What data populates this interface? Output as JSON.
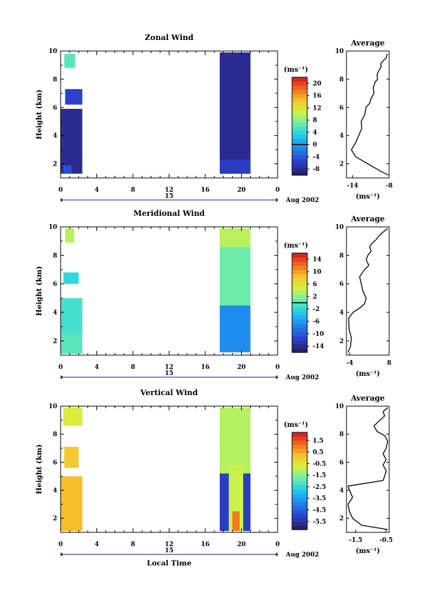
{
  "chart_data": [
    {
      "type": "heatmap",
      "title": "Zonal Wind",
      "ylabel": "Height (km)",
      "xlim": [
        0,
        24
      ],
      "ylim": [
        1,
        10
      ],
      "xticks": [
        "0",
        "4",
        "8",
        "12",
        "16",
        "20",
        "0"
      ],
      "yticks": [
        "2",
        "4",
        "6",
        "8",
        "10"
      ],
      "date_label": "15",
      "month_label": "Aug 2002",
      "colorbar": {
        "unit": "(ms⁻¹)",
        "ticks": [
          "20",
          "16",
          "12",
          "8",
          "4",
          "0",
          "-4",
          "-8"
        ],
        "vmin": -10,
        "vmax": 22,
        "marked_value": 0
      },
      "blocks": [
        {
          "x0": 0,
          "x1": 2.4,
          "y0": 1.3,
          "y1": 5.9,
          "value": -8.5
        },
        {
          "x0": 0.3,
          "x1": 1.2,
          "y0": 1.3,
          "y1": 1.9,
          "value": -5
        },
        {
          "x0": 0.5,
          "x1": 2.4,
          "y0": 6.2,
          "y1": 7.3,
          "value": -6
        },
        {
          "x0": 0.4,
          "x1": 1.6,
          "y0": 8.8,
          "y1": 9.8,
          "value": 6
        },
        {
          "x0": 17.6,
          "x1": 21,
          "y0": 1.3,
          "y1": 9.9,
          "value": -8.5
        },
        {
          "x0": 17.6,
          "x1": 21,
          "y0": 1.3,
          "y1": 2.3,
          "value": -6.5
        }
      ],
      "profile": {
        "title": "Average",
        "xlabel": "(ms⁻¹)",
        "xlim": [
          -15,
          -8
        ],
        "xticks": [
          "-14",
          "-8"
        ],
        "yticks": [
          "2",
          "4",
          "6",
          "8",
          "10"
        ],
        "x": [
          -8.1,
          -9.5,
          -11.5,
          -13.5,
          -14.2,
          -13.5,
          -13.0,
          -12.5,
          -12.6,
          -12.0,
          -11.8,
          -11.2,
          -11.0,
          -10.5,
          -10.6,
          -10.3,
          -9.9,
          -10.0,
          -9.7,
          -9.3,
          -9.4,
          -9.0,
          -8.5,
          -8.3
        ],
        "y": [
          1.2,
          1.5,
          2.0,
          2.5,
          3.0,
          3.5,
          4.0,
          4.5,
          5.0,
          5.5,
          6.0,
          6.3,
          6.6,
          7.0,
          7.4,
          7.8,
          8.0,
          8.3,
          8.6,
          8.9,
          9.1,
          9.3,
          9.5,
          9.8
        ]
      }
    },
    {
      "type": "heatmap",
      "title": "Meridional Wind",
      "ylabel": "Height (km)",
      "xlim": [
        0,
        24
      ],
      "ylim": [
        1,
        10
      ],
      "xticks": [
        "0",
        "4",
        "8",
        "12",
        "16",
        "20",
        "0"
      ],
      "yticks": [
        "2",
        "4",
        "6",
        "8",
        "10"
      ],
      "date_label": "15",
      "month_label": "Aug 2002",
      "colorbar": {
        "unit": "(ms⁻¹)",
        "ticks": [
          "14",
          "10",
          "6",
          "2",
          "-2",
          "-6",
          "-10",
          "-14"
        ],
        "vmin": -16,
        "vmax": 16,
        "marked_value": 0
      },
      "blocks": [
        {
          "x0": 0,
          "x1": 2.4,
          "y0": 1.1,
          "y1": 5.0,
          "value": -1
        },
        {
          "x0": 0,
          "x1": 2.4,
          "y0": 1.1,
          "y1": 2.5,
          "value": 0
        },
        {
          "x0": 0.3,
          "x1": 2.0,
          "y0": 6.0,
          "y1": 6.8,
          "value": -2
        },
        {
          "x0": 0.5,
          "x1": 1.5,
          "y0": 8.9,
          "y1": 9.9,
          "value": 4
        },
        {
          "x0": 17.6,
          "x1": 21,
          "y0": 1.2,
          "y1": 4.5,
          "value": -7
        },
        {
          "x0": 17.6,
          "x1": 21,
          "y0": 4.5,
          "y1": 8.6,
          "value": 1
        },
        {
          "x0": 17.6,
          "x1": 21,
          "y0": 8.6,
          "y1": 9.9,
          "value": 4
        }
      ],
      "profile": {
        "title": "Average",
        "xlabel": "(ms⁻¹)",
        "xlim": [
          -5,
          8
        ],
        "xticks": [
          "-4",
          "8"
        ],
        "yticks": [
          "2",
          "4",
          "6",
          "8",
          "10"
        ],
        "x": [
          -4.5,
          -3.8,
          -3.5,
          -4.2,
          -4.3,
          -3.0,
          -1.0,
          0.5,
          1.0,
          0.0,
          -0.5,
          -1.0,
          0.5,
          1.8,
          1.0,
          1.5,
          2.5,
          2.0,
          3.0,
          4.0,
          5.0,
          6.0,
          7.5
        ],
        "y": [
          1.2,
          1.6,
          2.2,
          2.8,
          3.6,
          4.0,
          4.3,
          4.6,
          5.0,
          5.5,
          6.0,
          6.5,
          7.0,
          7.3,
          7.7,
          8.0,
          8.3,
          8.6,
          8.9,
          9.1,
          9.4,
          9.6,
          9.9
        ]
      }
    },
    {
      "type": "heatmap",
      "title": "Vertical Wind",
      "ylabel": "Height (km)",
      "xlabel": "Local Time",
      "xlim": [
        0,
        24
      ],
      "ylim": [
        1,
        10
      ],
      "xticks": [
        "0",
        "4",
        "8",
        "12",
        "16",
        "20",
        "0"
      ],
      "yticks": [
        "2",
        "4",
        "6",
        "8",
        "10"
      ],
      "date_label": "15",
      "month_label": "Aug 2002",
      "colorbar": {
        "unit": "(ms⁻¹)",
        "ticks": [
          "1.5",
          "0.5",
          "-0.5",
          "-1.5",
          "-2.5",
          "-3.5",
          "-4.5",
          "-5.5"
        ],
        "vmin": -6.2,
        "vmax": 2.2
      },
      "blocks": [
        {
          "x0": 0,
          "x1": 2.4,
          "y0": 1.1,
          "y1": 5.0,
          "value": 0.4
        },
        {
          "x0": 0.4,
          "x1": 2.0,
          "y0": 5.6,
          "y1": 7.1,
          "value": 0.2
        },
        {
          "x0": 0.3,
          "x1": 2.4,
          "y0": 8.6,
          "y1": 9.9,
          "value": -0.6
        },
        {
          "x0": 17.6,
          "x1": 21,
          "y0": 5.2,
          "y1": 9.9,
          "value": -1.0
        },
        {
          "x0": 17.6,
          "x1": 21,
          "y0": 1.1,
          "y1": 5.2,
          "value": -5.3
        },
        {
          "x0": 18.6,
          "x1": 20.2,
          "y0": 1.1,
          "y1": 5.8,
          "value": -0.8
        },
        {
          "x0": 19.0,
          "x1": 19.8,
          "y0": 1.1,
          "y1": 2.5,
          "value": 1.2
        }
      ],
      "profile": {
        "title": "Average",
        "xlabel": "(ms⁻¹)",
        "xlim": [
          -1.8,
          -0.4
        ],
        "xticks": [
          "-1.5",
          "-0.5"
        ],
        "yticks": [
          "2",
          "4",
          "6",
          "8",
          "10"
        ],
        "x": [
          -0.45,
          -1.3,
          -1.6,
          -1.7,
          -1.75,
          -1.6,
          -1.7,
          -1.75,
          -0.6,
          -0.55,
          -0.5,
          -0.6,
          -0.5,
          -0.6,
          -0.5,
          -0.45,
          -0.55,
          -0.8,
          -0.9,
          -0.7,
          -0.55,
          -0.6,
          -0.45
        ],
        "y": [
          1.2,
          1.5,
          2.0,
          2.5,
          3.0,
          3.5,
          4.0,
          4.3,
          4.7,
          5.0,
          5.4,
          5.8,
          6.2,
          6.6,
          7.0,
          7.5,
          7.9,
          8.2,
          8.6,
          9.0,
          9.3,
          9.6,
          9.9
        ]
      }
    }
  ]
}
